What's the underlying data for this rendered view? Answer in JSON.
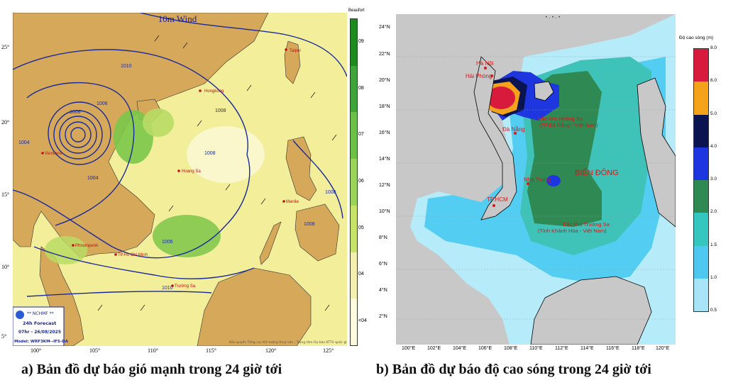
{
  "panelA": {
    "title": "10m Wind",
    "scale_title": "Beaufort",
    "scale_labels": [
      "09",
      "08",
      "07",
      "06",
      "05",
      "04",
      "<04"
    ],
    "scale_colors": [
      "#1e8a1e",
      "#3fa43a",
      "#6cc048",
      "#9bd45a",
      "#c8e36a",
      "#f2efb0",
      "#fffbe0"
    ],
    "lat_labels": [
      "25°",
      "20°",
      "15°",
      "10°",
      "5°"
    ],
    "lon_labels": [
      "100°",
      "105°",
      "110°",
      "115°",
      "120°",
      "125°"
    ],
    "isobar_labels": [
      "1010",
      "1006",
      "1004",
      "1006",
      "1008",
      "1008",
      "1008",
      "1006",
      "1010",
      "1008",
      "1004"
    ],
    "place_labels": [
      "Taipei",
      "Hongkong",
      "Vientiane",
      "Hoang Sa",
      "Manila",
      "Phnompenh",
      "TP.Hồ Chí Minh",
      "Trường Sa"
    ],
    "info_box": {
      "agency": "** NCHMF **",
      "forecast": "24h Forecast",
      "time": "07hr - 26/08/2025",
      "model": "Model: WRF3KM--IFS-DA"
    },
    "footer_note": "Bản quyền Tổng cục Khí tượng thuỷ văn - Trung tâm Dự báo KTTV quốc gia",
    "caption": "a) Bản đồ dự báo gió mạnh trong 24 giờ tới"
  },
  "panelB": {
    "top_note": "• . • . •",
    "scale_title": "Độ cao sóng (m)",
    "scale_labels": [
      "8.0",
      "6.0",
      "5.0",
      "4.0",
      "3.0",
      "2.0",
      "1.5",
      "1.0",
      "0.5"
    ],
    "scale_colors": [
      "#d81b3c",
      "#f4a21a",
      "#0a1450",
      "#1e36e0",
      "#2e8a52",
      "#36c6c0",
      "#4ec8f0",
      "#a8e4f8"
    ],
    "lat_labels": [
      "24°N",
      "22°N",
      "20°N",
      "18°N",
      "16°N",
      "14°N",
      "12°N",
      "10°N",
      "8°N",
      "6°N",
      "4°N",
      "2°N"
    ],
    "lon_labels": [
      "100°E",
      "102°E",
      "104°E",
      "106°E",
      "108°E",
      "110°E",
      "112°E",
      "114°E",
      "116°E",
      "118°E",
      "120°E"
    ],
    "place_labels": [
      "Hà Nội",
      "Hải Phòng",
      "Đà Nẵng",
      "Nha Trang",
      "TP.HCM"
    ],
    "region_labels": [
      "Đặc khu Hoàng Sa",
      "(TP.Đà Nẵng - Việt Nam)",
      "BIỂN ĐÔNG",
      "Đặc khu Trường Sa",
      "(Tỉnh Khánh Hòa - Việt Nam)"
    ],
    "caption": "b) Bản đồ dự báo độ cao sóng trong 24 giờ tới"
  }
}
